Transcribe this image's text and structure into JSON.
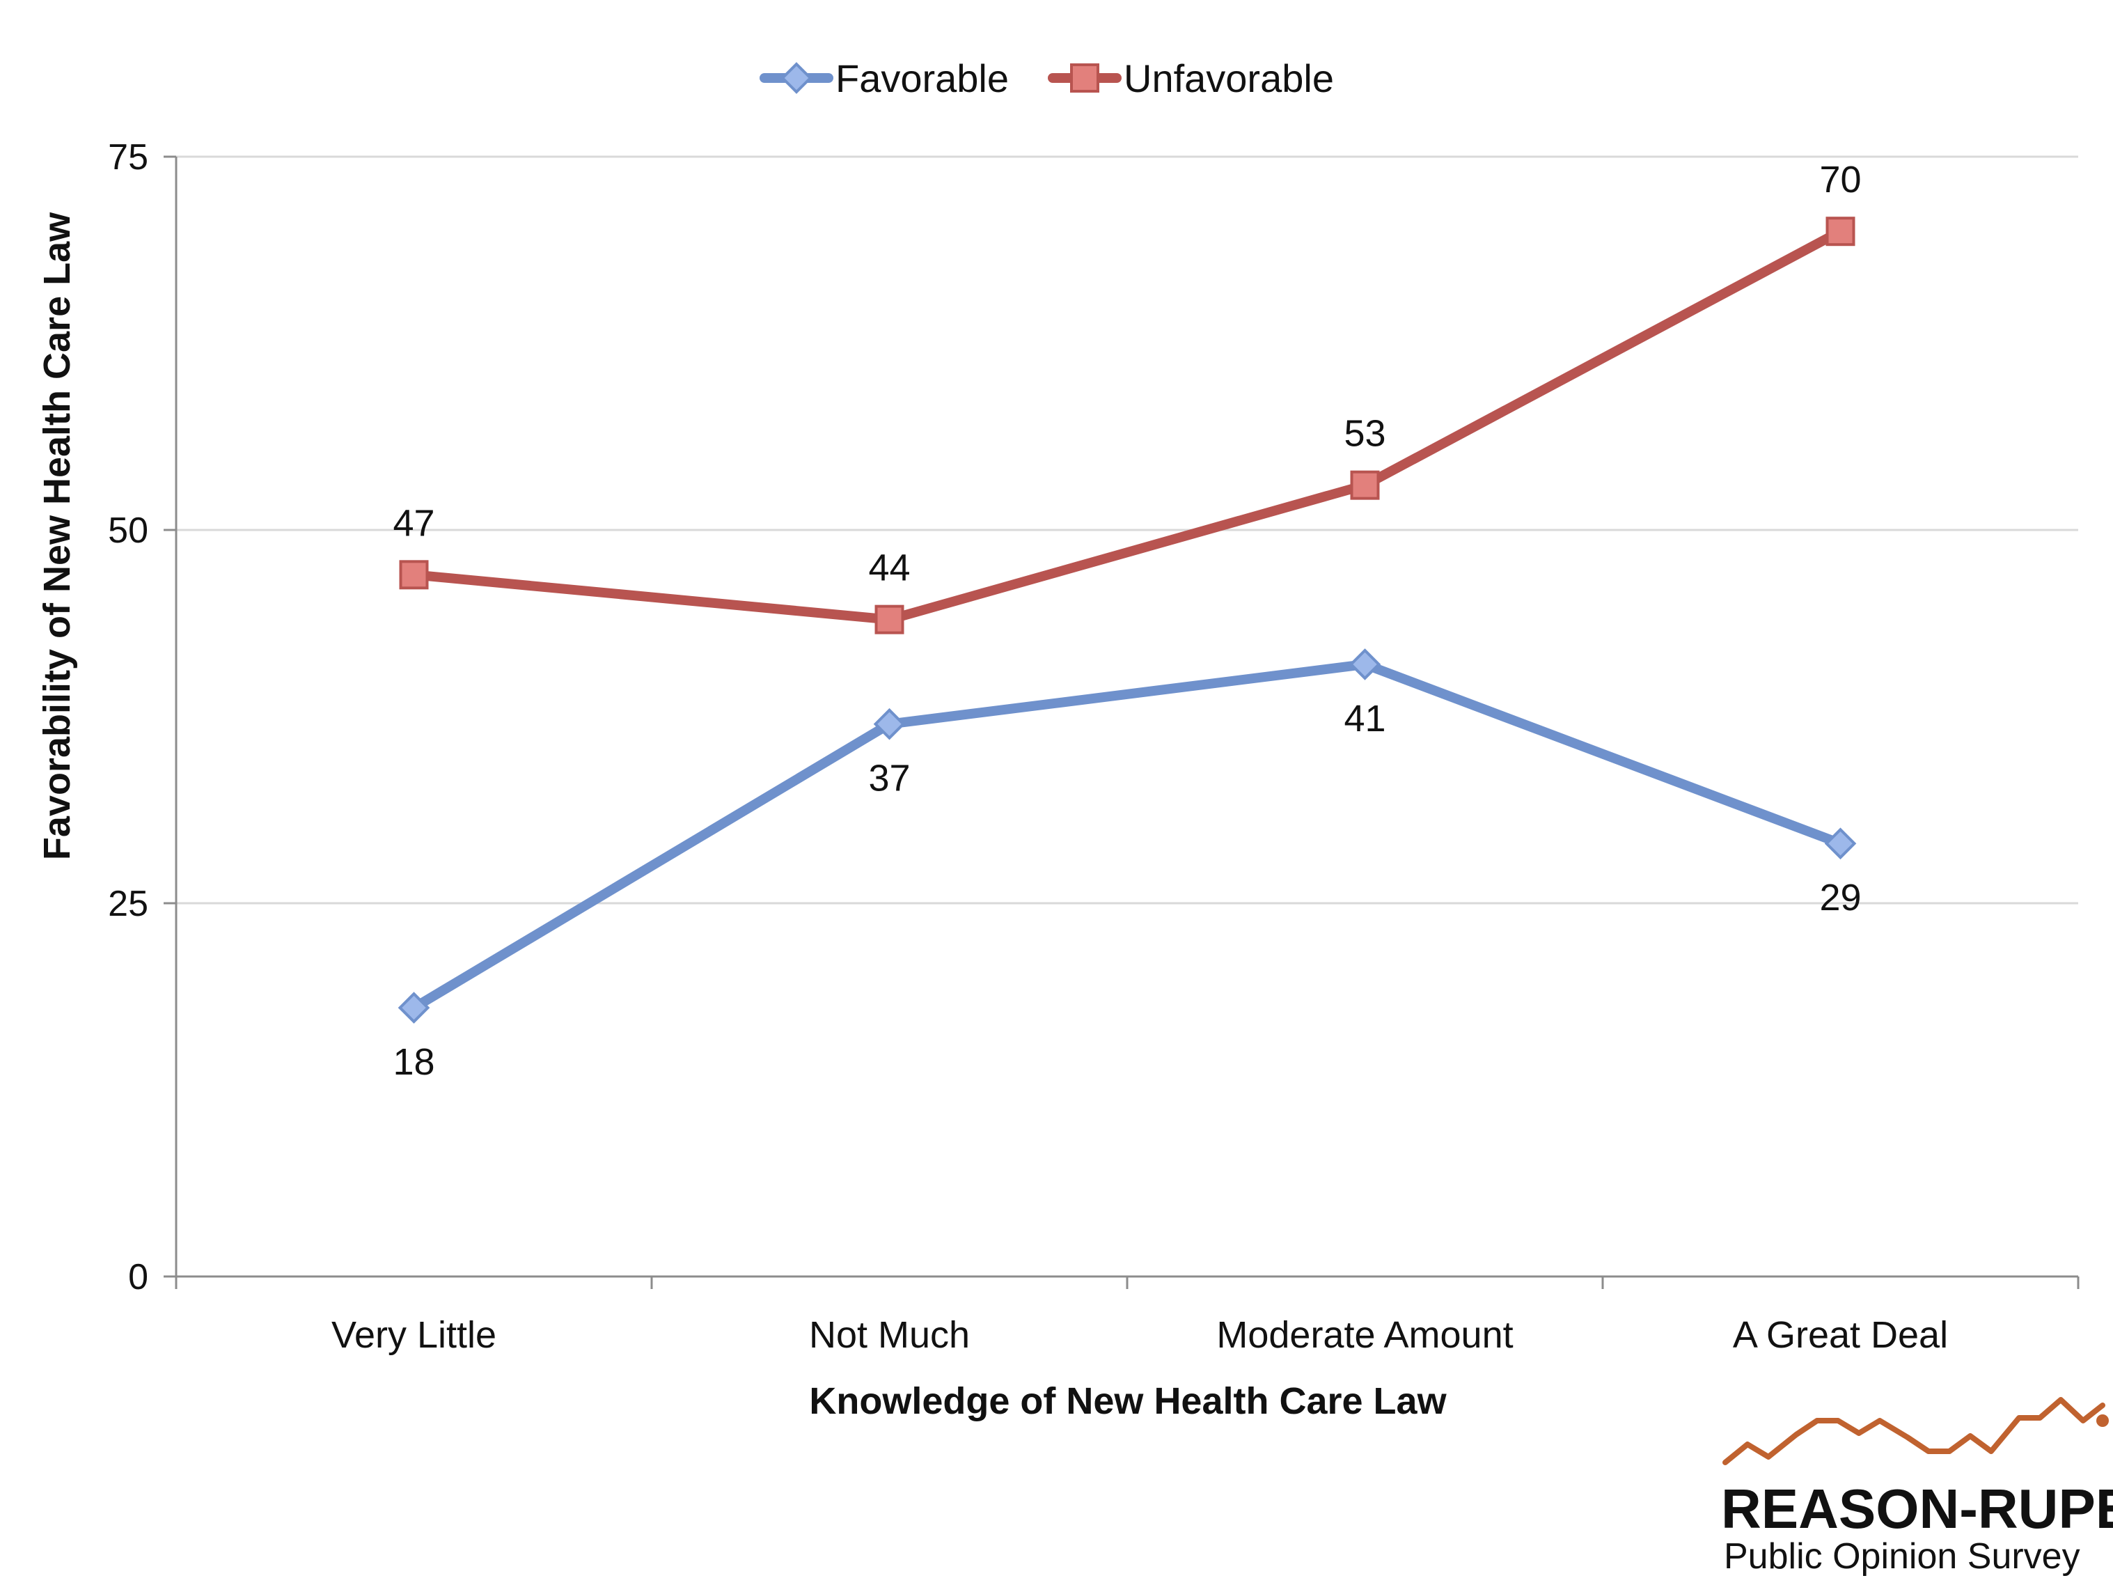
{
  "chart_data": {
    "type": "line",
    "categories": [
      "Very Little",
      "Not Much",
      "Moderate Amount",
      "A Great Deal"
    ],
    "series": [
      {
        "name": "Favorable",
        "values": [
          18,
          37,
          41,
          29
        ],
        "color": "#6f91cc",
        "marker": "diamond",
        "label_position": "below"
      },
      {
        "name": "Unfavorable",
        "values": [
          47,
          44,
          53,
          70
        ],
        "color": "#b85450",
        "marker": "square",
        "label_position": "above"
      }
    ],
    "xlabel": "Knowledge of New Health Care Law",
    "ylabel": "Favorability of New Health Care Law",
    "ylim": [
      0,
      75
    ],
    "yticks": [
      0,
      25,
      50,
      75
    ],
    "grid": "horizontal",
    "legend": "top-center"
  },
  "logo": {
    "name": "REASON-RUPE",
    "subtitle": "Public Opinion Survey",
    "color": "#c0622f"
  }
}
